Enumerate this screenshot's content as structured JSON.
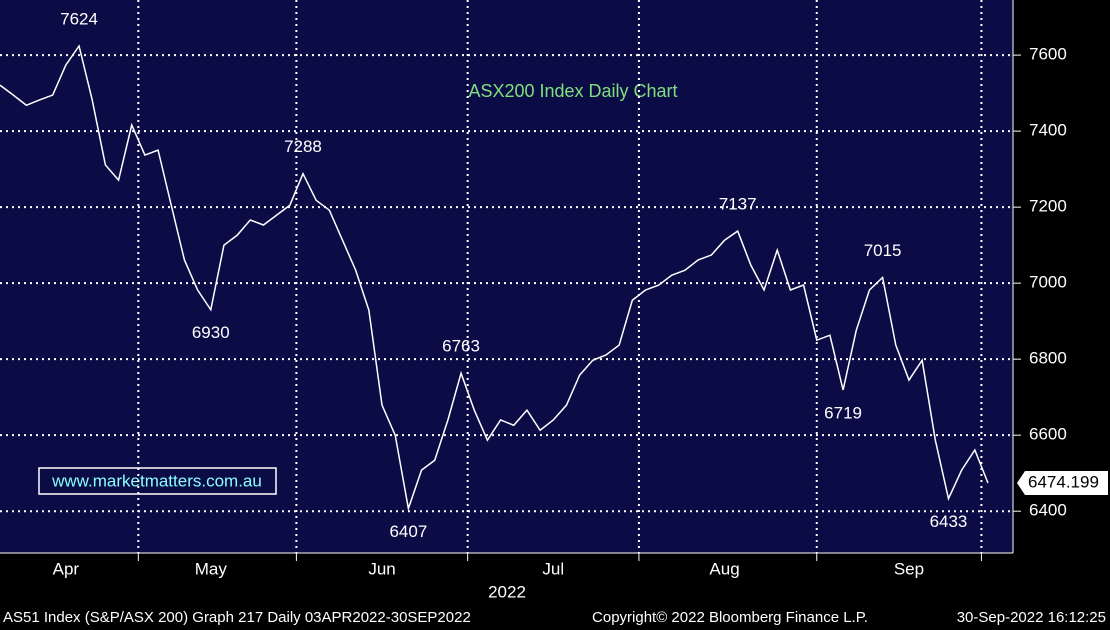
{
  "chart_data": {
    "type": "line",
    "title": "ASX200 Index Daily Chart",
    "watermark": "www.marketmatters.com.au",
    "year_label": "2022",
    "footer": [
      "AS51 Index (S&P/ASX 200) Graph 217  Daily 03APR2022-30SEP2022",
      "Copyright© 2022 Bloomberg Finance L.P.",
      "30-Sep-2022 16:12:25"
    ],
    "categories": [
      null,
      null,
      null,
      null,
      null,
      "Apr",
      null,
      null,
      null,
      null,
      null,
      null,
      null,
      null,
      null,
      null,
      "May",
      null,
      null,
      null,
      null,
      null,
      null,
      null,
      null,
      null,
      null,
      null,
      null,
      "Jun",
      null,
      null,
      null,
      null,
      null,
      null,
      null,
      null,
      null,
      null,
      null,
      null,
      "Jul",
      null,
      null,
      null,
      null,
      null,
      null,
      null,
      null,
      null,
      null,
      null,
      null,
      "Aug",
      null,
      null,
      null,
      null,
      null,
      null,
      null,
      null,
      null,
      null,
      null,
      null,
      null,
      "Sep",
      null,
      null,
      null,
      null,
      null,
      null
    ],
    "values": [
      7521,
      7495,
      7468,
      7482,
      7495,
      7574,
      7624,
      7482,
      7311,
      7271,
      7416,
      7337,
      7350,
      7205,
      7061,
      6982,
      6930,
      7100,
      7126,
      7166,
      7153,
      7179,
      7205,
      7288,
      7218,
      7192,
      7113,
      7034,
      6929,
      6679,
      6600,
      6407,
      6508,
      6534,
      6640,
      6763,
      6666,
      6587,
      6640,
      6626,
      6666,
      6613,
      6640,
      6679,
      6758,
      6797,
      6811,
      6837,
      6955,
      6982,
      6995,
      7021,
      7034,
      7061,
      7074,
      7113,
      7137,
      7047,
      6982,
      7087,
      6982,
      6995,
      6850,
      6863,
      6719,
      6876,
      6982,
      7015,
      6837,
      6745,
      6797,
      6587,
      6433,
      6508,
      6561,
      6474.199
    ],
    "annotations": [
      7624,
      7288,
      6930,
      6763,
      6407,
      7137,
      7015,
      6719,
      6433
    ],
    "color": "#ffffff",
    "ylim": [
      6290,
      7745
    ],
    "yticks": [
      6400,
      6600,
      6800,
      7000,
      7200,
      7400,
      7600
    ],
    "grid": true
  }
}
